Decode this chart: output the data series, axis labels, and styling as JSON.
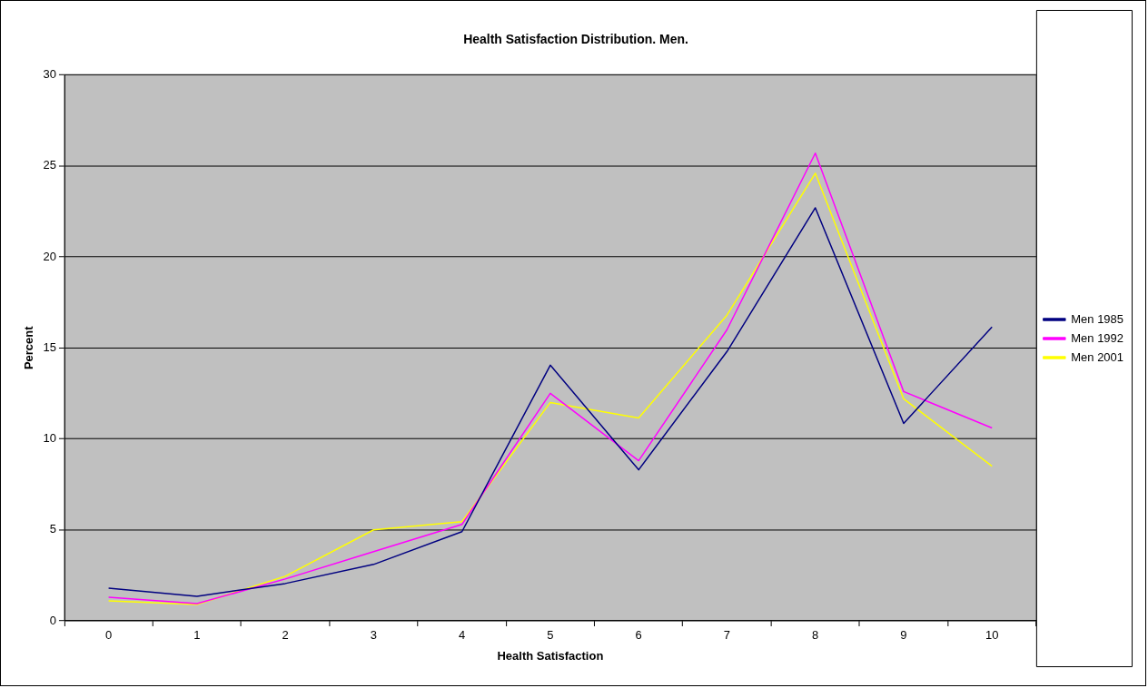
{
  "chart_data": {
    "type": "line",
    "title": "Health Satisfaction Distribution. Men.",
    "xlabel": "Health Satisfaction",
    "ylabel": "Percent",
    "categories": [
      "0",
      "1",
      "2",
      "3",
      "4",
      "5",
      "6",
      "7",
      "8",
      "9",
      "10"
    ],
    "series": [
      {
        "name": "Men 1985",
        "color": "#000080",
        "values": [
          1.8,
          1.35,
          2.05,
          3.1,
          4.9,
          14.05,
          8.3,
          14.8,
          22.7,
          10.85,
          16.15
        ]
      },
      {
        "name": "Men 1992",
        "color": "#ff00ff",
        "values": [
          1.3,
          0.95,
          2.3,
          3.8,
          5.3,
          12.5,
          8.8,
          16.0,
          25.7,
          12.6,
          10.6
        ]
      },
      {
        "name": "Men 2001",
        "color": "#ffff00",
        "values": [
          1.1,
          0.9,
          2.45,
          5.0,
          5.45,
          12.0,
          11.15,
          16.8,
          24.6,
          12.2,
          8.5
        ]
      }
    ],
    "ylim": [
      0,
      30
    ],
    "yticks": [
      0,
      5,
      10,
      15,
      20,
      25,
      30
    ],
    "grid": "y",
    "legend": "right",
    "marker": "none",
    "line_style": "solid"
  }
}
